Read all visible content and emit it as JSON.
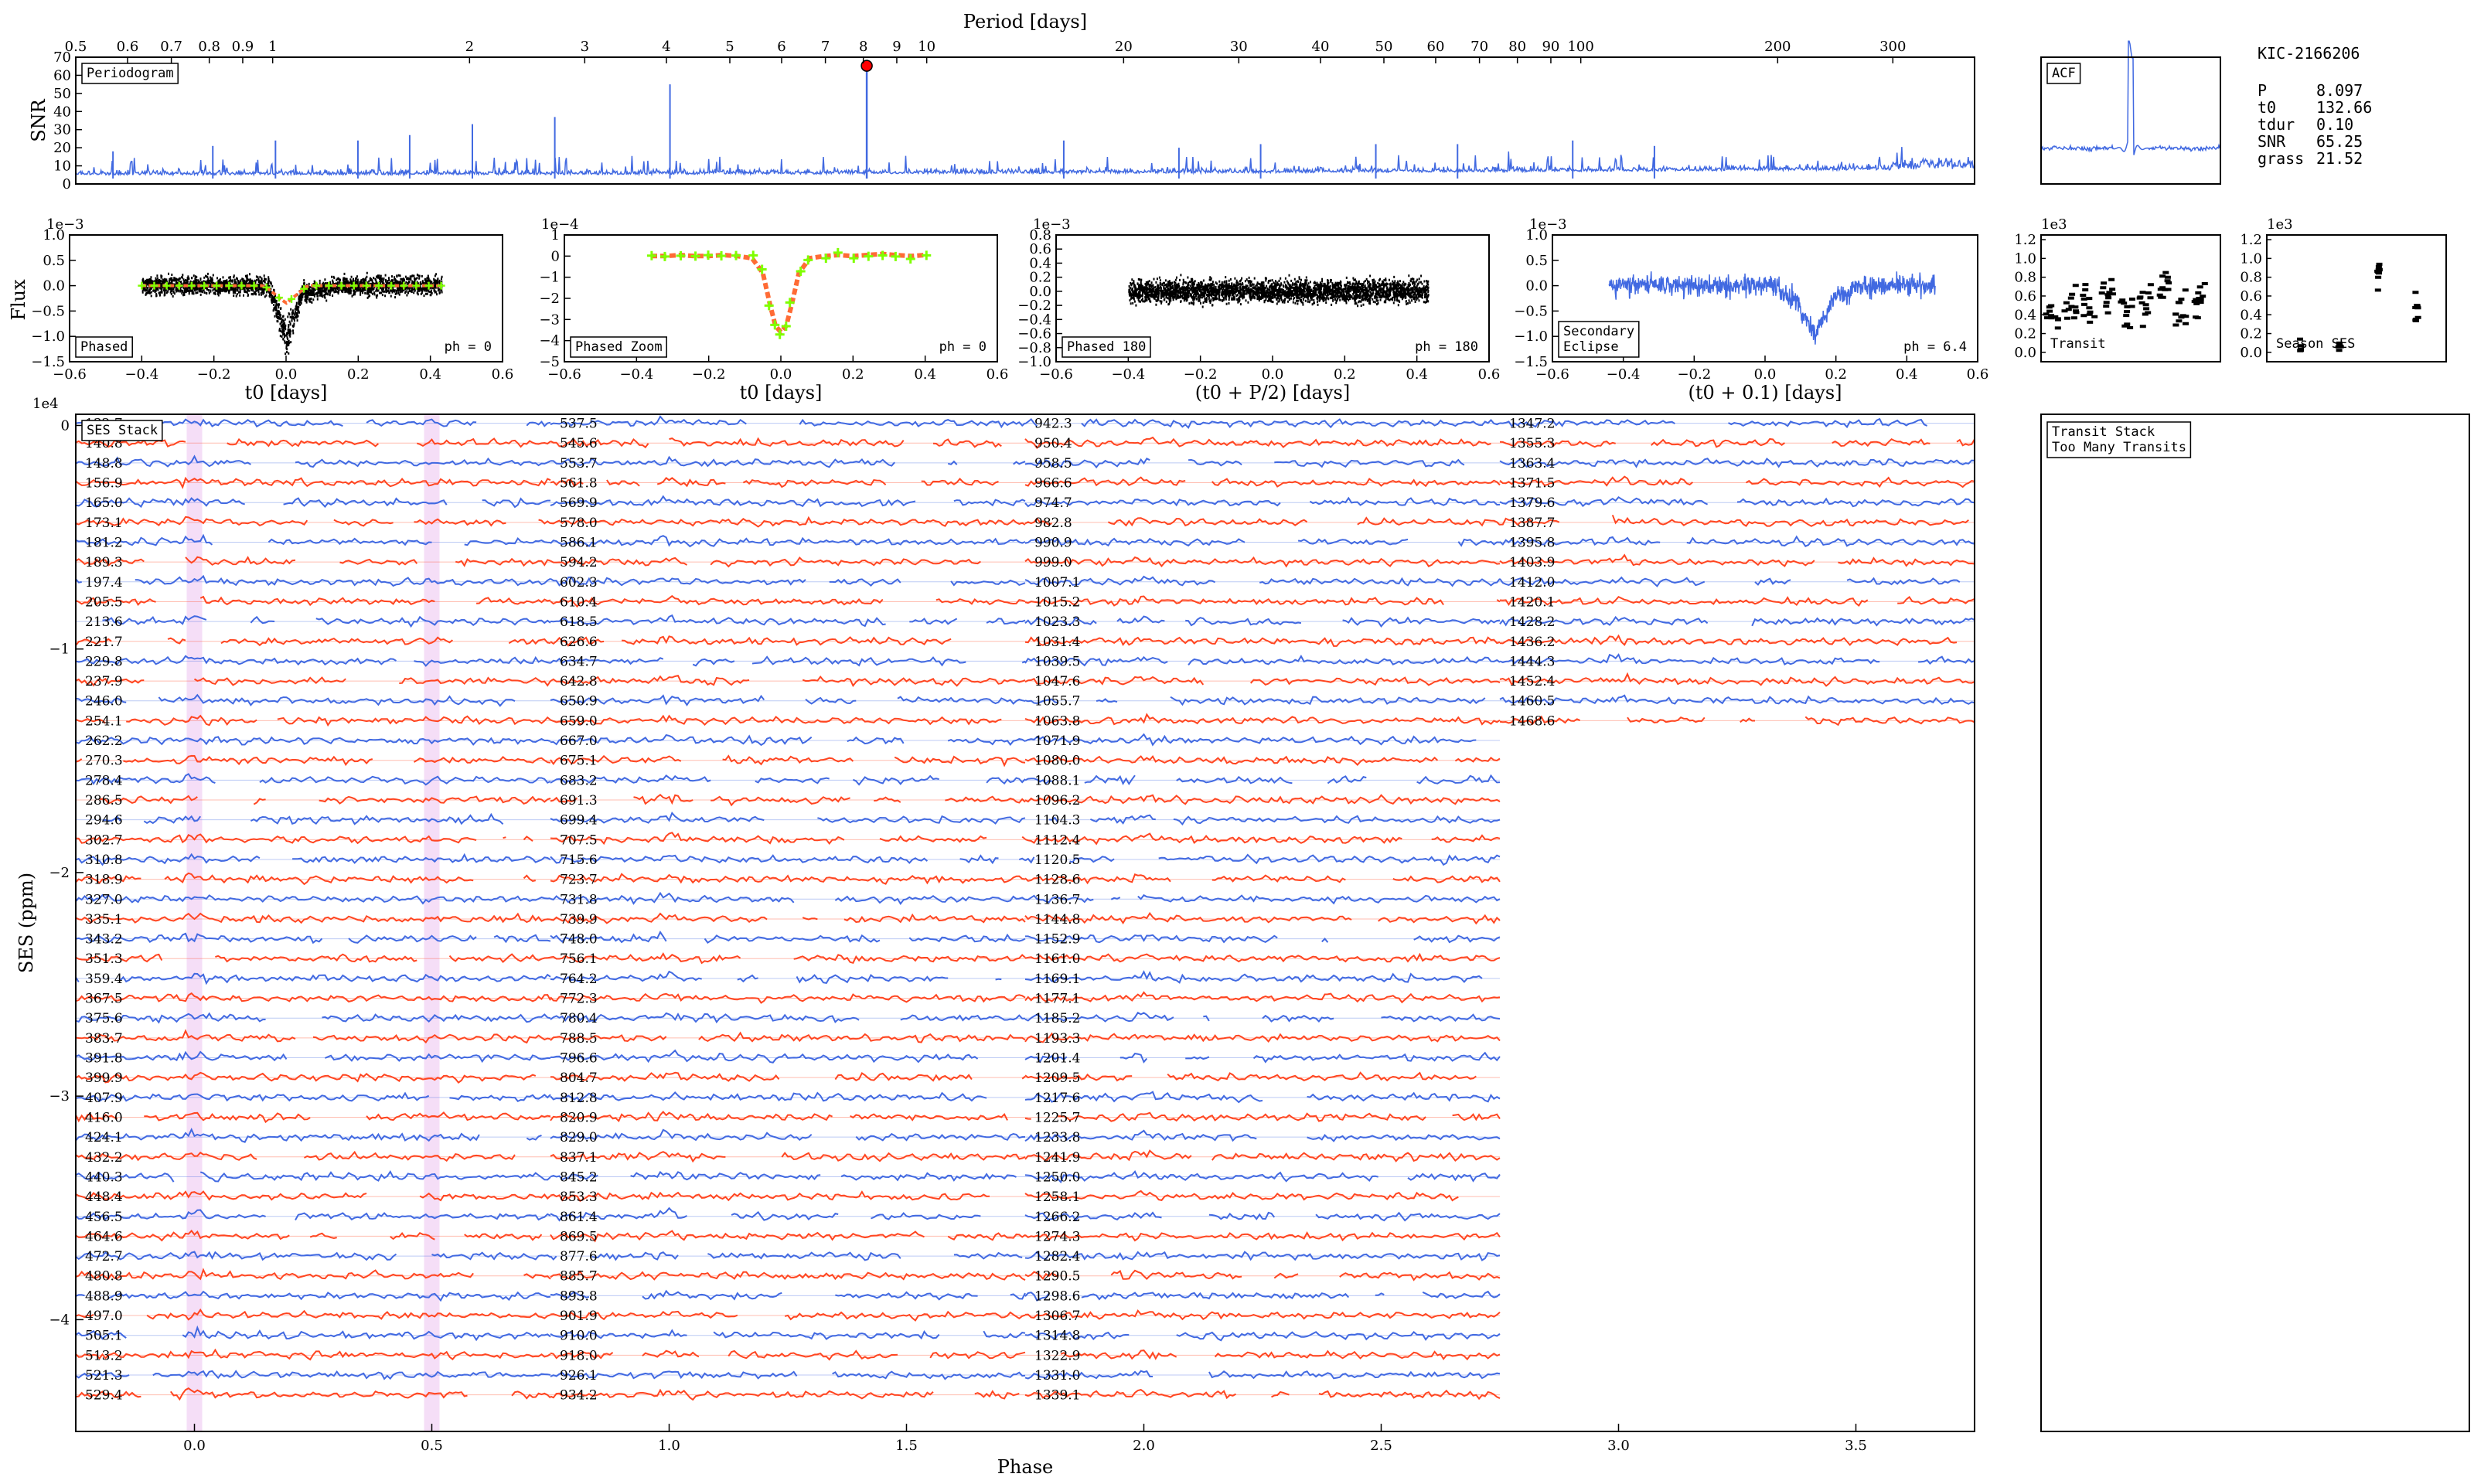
{
  "colors": {
    "blue": "#4169e1",
    "red": "#ff4520",
    "green": "#7fff00",
    "orange": "#ff6b35",
    "marker": "#ff0000",
    "highlight": "#f3d6f5"
  },
  "star_info": {
    "kic": "KIC-2166206",
    "rows": [
      {
        "label": "P",
        "value": "8.097"
      },
      {
        "label": "t0",
        "value": "132.66"
      },
      {
        "label": "tdur",
        "value": "0.10"
      },
      {
        "label": "SNR",
        "value": "65.25"
      },
      {
        "label": "grass",
        "value": "21.52"
      }
    ]
  },
  "chart_data": [
    {
      "id": "periodogram",
      "type": "line",
      "title": "Periodogram",
      "xlabel": "Period [days]",
      "ylabel": "SNR",
      "xscale": "log",
      "xlim": [
        0.5,
        400
      ],
      "ylim": [
        0,
        70
      ],
      "xticks": [
        "0.5",
        "0.6",
        "0.7",
        "0.8",
        "0.9",
        "1",
        "2",
        "3",
        "4",
        "5",
        "6",
        "7",
        "8",
        "9",
        "10",
        "20",
        "30",
        "40",
        "50",
        "60",
        "70",
        "80",
        "90",
        "100",
        "200",
        "300"
      ],
      "xtick_values": [
        0.5,
        0.6,
        0.7,
        0.8,
        0.9,
        1,
        2,
        3,
        4,
        5,
        6,
        7,
        8,
        9,
        10,
        20,
        30,
        40,
        50,
        60,
        70,
        80,
        90,
        100,
        200,
        300
      ],
      "yticks": [
        "0",
        "10",
        "20",
        "30",
        "40",
        "50",
        "60",
        "70"
      ],
      "peak": {
        "period": 8.097,
        "snr": 65.25
      },
      "noise_floor": 5,
      "spikes": [
        {
          "period": 0.57,
          "snr": 18
        },
        {
          "period": 0.81,
          "snr": 21
        },
        {
          "period": 1.01,
          "snr": 24
        },
        {
          "period": 1.35,
          "snr": 24
        },
        {
          "period": 1.62,
          "snr": 27
        },
        {
          "period": 2.02,
          "snr": 33
        },
        {
          "period": 2.7,
          "snr": 37
        },
        {
          "period": 4.05,
          "snr": 55
        },
        {
          "period": 16.2,
          "snr": 24
        },
        {
          "period": 24.3,
          "snr": 20
        },
        {
          "period": 32.4,
          "snr": 22
        },
        {
          "period": 48.6,
          "snr": 22
        },
        {
          "period": 64.8,
          "snr": 22
        },
        {
          "period": 97.2,
          "snr": 24
        },
        {
          "period": 129.6,
          "snr": 21
        }
      ]
    },
    {
      "id": "acf",
      "type": "line",
      "title": "ACF",
      "peak_position": 0.5,
      "peak_height": 0.95
    },
    {
      "id": "phased",
      "type": "scatter",
      "title": "Phased",
      "annotation": "ph = 0",
      "xlabel": "t0 [days]",
      "ylabel": "Flux",
      "y_exponent": "1e−3",
      "xlim": [
        -0.6,
        0.6
      ],
      "ylim": [
        -1.5,
        1.0
      ],
      "xticks": [
        "−0.6",
        "−0.4",
        "−0.2",
        "0.0",
        "0.2",
        "0.4",
        "0.6"
      ],
      "yticks": [
        "−1.5",
        "−1.0",
        "−0.5",
        "0.0",
        "0.5",
        "1.0"
      ],
      "data_range": [
        -0.4,
        0.43
      ],
      "transit_depth": -0.45,
      "transit_center": 0.0,
      "transit_halfwidth": 0.05
    },
    {
      "id": "phased_zoom",
      "type": "scatter",
      "title": "Phased Zoom",
      "annotation": "ph = 0",
      "xlabel": "t0 [days]",
      "y_exponent": "1e−4",
      "xlim": [
        -0.6,
        0.6
      ],
      "ylim": [
        -5,
        1
      ],
      "xticks": [
        "−0.6",
        "−0.4",
        "−0.2",
        "0.0",
        "0.2",
        "0.4",
        "0.6"
      ],
      "yticks": [
        "−5",
        "−4",
        "−3",
        "−2",
        "−1",
        "0",
        "1"
      ],
      "binned": [
        [
          -0.36,
          0.0
        ],
        [
          -0.32,
          0.0
        ],
        [
          -0.28,
          0.05
        ],
        [
          -0.24,
          0.0
        ],
        [
          -0.2,
          0.0
        ],
        [
          -0.16,
          0.05
        ],
        [
          -0.12,
          0.0
        ],
        [
          -0.08,
          -0.1
        ],
        [
          -0.05,
          -0.8
        ],
        [
          -0.03,
          -2.3
        ],
        [
          -0.015,
          -3.3
        ],
        [
          0.0,
          -3.6
        ],
        [
          0.015,
          -3.3
        ],
        [
          0.03,
          -2.3
        ],
        [
          0.05,
          -0.8
        ],
        [
          0.08,
          -0.1
        ],
        [
          0.12,
          0.0
        ],
        [
          0.16,
          0.05
        ],
        [
          0.2,
          0.0
        ],
        [
          0.24,
          0.05
        ],
        [
          0.28,
          0.1
        ],
        [
          0.32,
          0.05
        ],
        [
          0.36,
          0.0
        ],
        [
          0.4,
          0.05
        ]
      ]
    },
    {
      "id": "phased_180",
      "type": "scatter",
      "title": "Phased 180",
      "annotation": "ph = 180",
      "xlabel": "(t0 + P/2) [days]",
      "y_exponent": "1e−3",
      "xlim": [
        -0.6,
        0.6
      ],
      "ylim": [
        -1.0,
        0.8
      ],
      "xticks": [
        "−0.6",
        "−0.4",
        "−0.2",
        "0.0",
        "0.2",
        "0.4",
        "0.6"
      ],
      "yticks": [
        "−1.0",
        "−0.8",
        "−0.6",
        "−0.4",
        "−0.2",
        "0.0",
        "0.2",
        "0.4",
        "0.6",
        "0.8"
      ],
      "data_range": [
        -0.4,
        0.43
      ]
    },
    {
      "id": "secondary",
      "type": "line",
      "title": "Secondary\nEclipse",
      "annotation": "ph = 6.4",
      "xlabel": "(t0 + 0.1) [days]",
      "y_exponent": "1e−3",
      "xlim": [
        -0.6,
        0.6
      ],
      "ylim": [
        -1.5,
        1.0
      ],
      "xticks": [
        "−0.6",
        "−0.4",
        "−0.2",
        "0.0",
        "0.2",
        "0.4",
        "0.6"
      ],
      "yticks": [
        "−1.5",
        "−1.0",
        "−0.5",
        "0.0",
        "0.5",
        "1.0"
      ],
      "data_range": [
        -0.44,
        0.48
      ],
      "dip_center": 0.14,
      "dip_depth": -1.0
    },
    {
      "id": "transit",
      "type": "scatter",
      "title": "Transit",
      "y_exponent": "1e3",
      "ylim": [
        -0.1,
        1.25
      ],
      "yticks": [
        "0.0",
        "0.2",
        "0.4",
        "0.6",
        "0.8",
        "1.0",
        "1.2"
      ]
    },
    {
      "id": "season_ses",
      "type": "scatter",
      "title": "Season SES",
      "y_exponent": "1e3",
      "ylim": [
        -0.1,
        1.25
      ],
      "yticks": [
        "0.0",
        "0.2",
        "0.4",
        "0.6",
        "0.8",
        "1.0",
        "1.2"
      ]
    },
    {
      "id": "ses_stack",
      "type": "line",
      "title": "SES Stack",
      "xlabel": "Phase",
      "ylabel": "SES (ppm)",
      "y_exponent": "1e4",
      "xlim": [
        -0.25,
        3.75
      ],
      "ylim": [
        -4.5,
        0.05
      ],
      "xticks": [
        "0.0",
        "0.5",
        "1.0",
        "1.5",
        "2.0",
        "2.5",
        "3.0",
        "3.5"
      ],
      "yticks": [
        "0",
        "−1",
        "−2",
        "−3",
        "−4"
      ],
      "highlight_phases": [
        0.0,
        0.5
      ],
      "columns": [
        {
          "start_phase": -0.25,
          "end_phase": 0.75,
          "labels": [
            "132.7",
            "140.8",
            "148.8",
            "156.9",
            "165.0",
            "173.1",
            "181.2",
            "189.3",
            "197.4",
            "205.5",
            "213.6",
            "221.7",
            "229.8",
            "237.9",
            "246.0",
            "254.1",
            "262.2",
            "270.3",
            "278.4",
            "286.5",
            "294.6",
            "302.7",
            "310.8",
            "318.9",
            "327.0",
            "335.1",
            "343.2",
            "351.3",
            "359.4",
            "367.5",
            "375.6",
            "383.7",
            "391.8",
            "399.9",
            "407.9",
            "416.0",
            "424.1",
            "432.2",
            "440.3",
            "448.4",
            "456.5",
            "464.6",
            "472.7",
            "480.8",
            "488.9",
            "497.0",
            "505.1",
            "513.2",
            "521.3",
            "529.4"
          ]
        },
        {
          "start_phase": 0.75,
          "end_phase": 1.75,
          "labels": [
            "537.5",
            "545.6",
            "553.7",
            "561.8",
            "569.9",
            "578.0",
            "586.1",
            "594.2",
            "602.3",
            "610.4",
            "618.5",
            "626.6",
            "634.7",
            "642.8",
            "650.9",
            "659.0",
            "667.0",
            "675.1",
            "683.2",
            "691.3",
            "699.4",
            "707.5",
            "715.6",
            "723.7",
            "731.8",
            "739.9",
            "748.0",
            "756.1",
            "764.2",
            "772.3",
            "780.4",
            "788.5",
            "796.6",
            "804.7",
            "812.8",
            "820.9",
            "829.0",
            "837.1",
            "845.2",
            "853.3",
            "861.4",
            "869.5",
            "877.6",
            "885.7",
            "893.8",
            "901.9",
            "910.0",
            "918.0",
            "926.1",
            "934.2"
          ]
        },
        {
          "start_phase": 1.75,
          "end_phase": 2.75,
          "labels": [
            "942.3",
            "950.4",
            "958.5",
            "966.6",
            "974.7",
            "982.8",
            "990.9",
            "999.0",
            "1007.1",
            "1015.2",
            "1023.3",
            "1031.4",
            "1039.5",
            "1047.6",
            "1055.7",
            "1063.8",
            "1071.9",
            "1080.0",
            "1088.1",
            "1096.2",
            "1104.3",
            "1112.4",
            "1120.5",
            "1128.6",
            "1136.7",
            "1144.8",
            "1152.9",
            "1161.0",
            "1169.1",
            "1177.1",
            "1185.2",
            "1193.3",
            "1201.4",
            "1209.5",
            "1217.6",
            "1225.7",
            "1233.8",
            "1241.9",
            "1250.0",
            "1258.1",
            "1266.2",
            "1274.3",
            "1282.4",
            "1290.5",
            "1298.6",
            "1306.7",
            "1314.8",
            "1322.9",
            "1331.0",
            "1339.1"
          ]
        },
        {
          "start_phase": 2.75,
          "end_phase": 3.75,
          "labels": [
            "1347.2",
            "1355.3",
            "1363.4",
            "1371.5",
            "1379.6",
            "1387.7",
            "1395.8",
            "1403.9",
            "1412.0",
            "1420.1",
            "1428.2",
            "1436.2",
            "1444.3",
            "1452.4",
            "1460.5",
            "1468.6"
          ]
        }
      ]
    },
    {
      "id": "transit_stack",
      "type": "line",
      "title": "Transit Stack\nToo Many Transits"
    }
  ]
}
